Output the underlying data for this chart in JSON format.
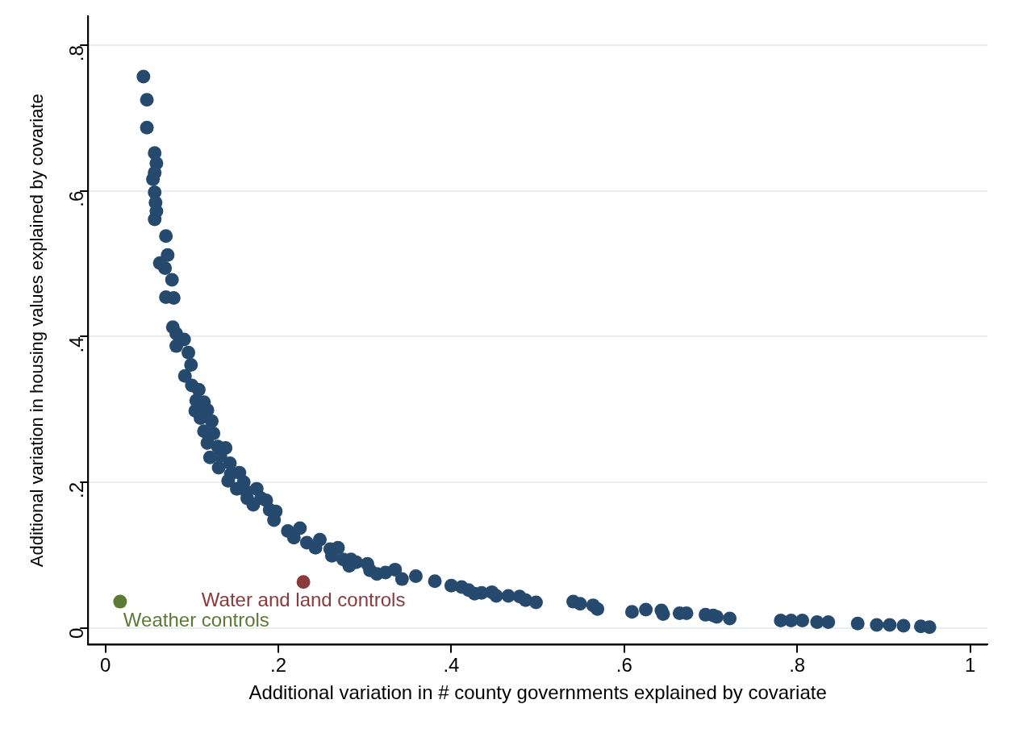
{
  "chart_data": {
    "type": "scatter",
    "xlabel": "Additional variation in # county governments explained by covariate",
    "ylabel": "Additional variation in housing values explained by covariate",
    "xlim": [
      -0.02,
      1.02
    ],
    "ylim": [
      -0.023,
      0.84
    ],
    "xticks": [
      0,
      {
        "value": 0.2,
        "label": ".2"
      },
      {
        "value": 0.4,
        "label": ".4"
      },
      {
        "value": 0.6,
        "label": ".6"
      },
      {
        "value": 0.8,
        "label": ".8"
      },
      1
    ],
    "yticks": [
      0,
      {
        "value": 0.2,
        "label": ".2"
      },
      {
        "value": 0.4,
        "label": ".4"
      },
      {
        "value": 0.6,
        "label": ".6"
      },
      {
        "value": 0.8,
        "label": ".8"
      }
    ],
    "grid": "y",
    "legend": false,
    "marker": "circle",
    "series": [
      {
        "color": "#264a6e",
        "x": [
          0.044,
          0.048,
          0.048,
          0.057,
          0.059,
          0.057,
          0.055,
          0.057,
          0.058,
          0.059,
          0.057,
          0.07,
          0.072,
          0.063,
          0.069,
          0.077,
          0.07,
          0.079,
          0.078,
          0.082,
          0.082,
          0.091,
          0.096,
          0.099,
          0.092,
          0.1,
          0.108,
          0.105,
          0.114,
          0.104,
          0.118,
          0.11,
          0.123,
          0.114,
          0.125,
          0.118,
          0.13,
          0.139,
          0.133,
          0.121,
          0.144,
          0.131,
          0.145,
          0.155,
          0.142,
          0.16,
          0.152,
          0.163,
          0.175,
          0.164,
          0.18,
          0.171,
          0.186,
          0.19,
          0.197,
          0.195,
          0.211,
          0.218,
          0.225,
          0.233,
          0.248,
          0.243,
          0.26,
          0.269,
          0.262,
          0.275,
          0.284,
          0.282,
          0.29,
          0.303,
          0.306,
          0.314,
          0.324,
          0.335,
          0.343,
          0.359,
          0.381,
          0.4,
          0.412,
          0.42,
          0.427,
          0.435,
          0.447,
          0.452,
          0.466,
          0.479,
          0.486,
          0.498,
          0.541,
          0.549,
          0.564,
          0.569,
          0.609,
          0.625,
          0.643,
          0.645,
          0.664,
          0.672,
          0.694,
          0.703,
          0.707,
          0.722,
          0.781,
          0.793,
          0.806,
          0.823,
          0.836,
          0.87,
          0.892,
          0.907,
          0.923,
          0.943,
          0.953
        ],
        "values": [
          0.757,
          0.725,
          0.687,
          0.652,
          0.638,
          0.625,
          0.616,
          0.598,
          0.584,
          0.572,
          0.561,
          0.538,
          0.512,
          0.501,
          0.494,
          0.478,
          0.454,
          0.453,
          0.413,
          0.404,
          0.387,
          0.396,
          0.378,
          0.361,
          0.346,
          0.333,
          0.327,
          0.312,
          0.31,
          0.298,
          0.299,
          0.288,
          0.284,
          0.27,
          0.267,
          0.254,
          0.249,
          0.247,
          0.236,
          0.234,
          0.226,
          0.22,
          0.211,
          0.213,
          0.202,
          0.2,
          0.191,
          0.187,
          0.191,
          0.178,
          0.178,
          0.169,
          0.175,
          0.162,
          0.16,
          0.148,
          0.133,
          0.124,
          0.137,
          0.117,
          0.121,
          0.11,
          0.108,
          0.11,
          0.099,
          0.094,
          0.094,
          0.085,
          0.09,
          0.088,
          0.079,
          0.074,
          0.076,
          0.08,
          0.067,
          0.071,
          0.064,
          0.058,
          0.056,
          0.052,
          0.047,
          0.048,
          0.049,
          0.044,
          0.044,
          0.043,
          0.038,
          0.035,
          0.036,
          0.033,
          0.031,
          0.026,
          0.022,
          0.025,
          0.024,
          0.019,
          0.02,
          0.02,
          0.018,
          0.017,
          0.015,
          0.013,
          0.01,
          0.01,
          0.01,
          0.008,
          0.008,
          0.006,
          0.004,
          0.004,
          0.003,
          0.002,
          0.001
        ]
      },
      {
        "name": "Weather controls",
        "color": "#5b7a35",
        "x": [
          0.017
        ],
        "values": [
          0.036
        ]
      },
      {
        "name": "Water and land controls",
        "color": "#8a3a3a",
        "x": [
          0.229
        ],
        "values": [
          0.063
        ]
      }
    ]
  }
}
